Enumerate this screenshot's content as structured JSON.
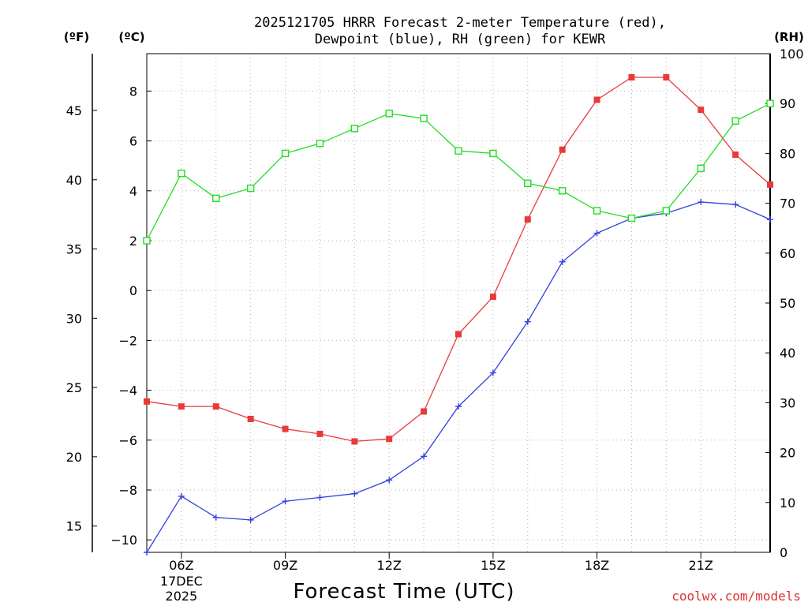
{
  "chart_data": {
    "type": "line",
    "title_lines": [
      "2025121705 HRRR Forecast 2-meter Temperature (red),",
      "Dewpoint (blue), RH (green) for KEWR"
    ],
    "xlabel": "Forecast Time (UTC)",
    "credit": "coolwx.com/models",
    "unit_labels": {
      "f": "(ºF)",
      "c": "(ºC)",
      "rh": "(RH)"
    },
    "x_range": [
      5,
      23
    ],
    "x_ticks": [
      {
        "x": 6,
        "label": "06Z",
        "sub": [
          "17DEC",
          "2025"
        ]
      },
      {
        "x": 9,
        "label": "09Z"
      },
      {
        "x": 12,
        "label": "12Z"
      },
      {
        "x": 15,
        "label": "15Z"
      },
      {
        "x": 18,
        "label": "18Z"
      },
      {
        "x": 21,
        "label": "21Z"
      }
    ],
    "y_celsius": {
      "range": [
        -10.5,
        9.5
      ],
      "ticks": [
        8,
        6,
        4,
        2,
        0,
        -2,
        -4,
        -6,
        -8,
        -10
      ]
    },
    "y_fahrenheit": {
      "ticks": [
        45,
        40,
        35,
        30,
        25,
        20,
        15
      ]
    },
    "y_rh": {
      "range": [
        0,
        100
      ],
      "ticks": [
        100,
        90,
        80,
        70,
        60,
        50,
        40,
        30,
        20,
        10,
        0
      ]
    },
    "x": [
      5,
      6,
      7,
      8,
      9,
      10,
      11,
      12,
      13,
      14,
      15,
      16,
      17,
      18,
      19,
      20,
      21,
      22,
      23
    ],
    "series": [
      {
        "name": "Temperature",
        "axis": "celsius",
        "color": "#e83a3a",
        "marker": "filled-square",
        "values": [
          -4.45,
          -4.65,
          -4.65,
          -5.15,
          -5.55,
          -5.75,
          -6.05,
          -5.95,
          -4.85,
          -1.75,
          -0.25,
          2.85,
          5.65,
          7.65,
          8.55,
          8.55,
          7.25,
          5.45,
          4.25
        ]
      },
      {
        "name": "Dewpoint",
        "axis": "celsius",
        "color": "#3040e0",
        "marker": "plus",
        "values": [
          -10.5,
          -8.25,
          -9.1,
          -9.2,
          -8.45,
          -8.3,
          -8.15,
          -7.6,
          -6.65,
          -4.65,
          -3.3,
          -1.25,
          1.15,
          2.3,
          2.9,
          3.1,
          3.55,
          3.45,
          2.85
        ]
      },
      {
        "name": "RH",
        "axis": "rh",
        "color": "#22dd22",
        "marker": "open-square",
        "values": [
          62.5,
          76,
          71,
          73,
          80,
          82,
          85,
          88,
          87,
          80.5,
          80,
          74,
          72.5,
          68.5,
          67,
          68.5,
          77,
          86.5,
          90
        ]
      }
    ]
  }
}
